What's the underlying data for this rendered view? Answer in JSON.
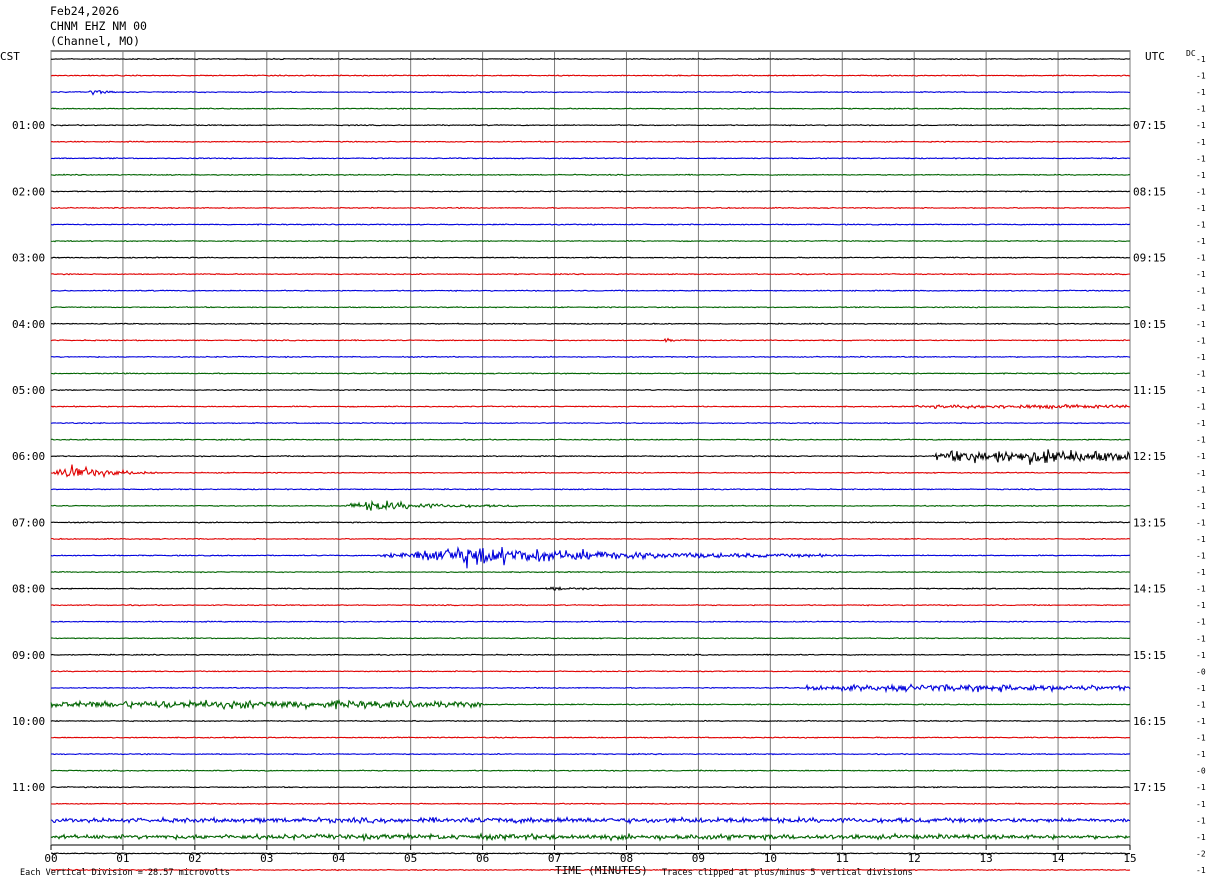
{
  "header": {
    "date": "Feb24,2026",
    "station": "CHNM EHZ NM 00",
    "channel": "(Channel, MO)"
  },
  "chart_data": {
    "type": "line",
    "title": "",
    "left_tz": "CST",
    "right_tz": "UTC",
    "dc_label": "DC",
    "xlabel": "TIME (MINUTES)",
    "x_ticks": [
      "00",
      "01",
      "02",
      "03",
      "04",
      "05",
      "06",
      "07",
      "08",
      "09",
      "10",
      "11",
      "12",
      "13",
      "14",
      "15"
    ],
    "xlim": [
      0,
      15
    ],
    "left_hour_labels": [
      "01:00",
      "02:00",
      "03:00",
      "04:00",
      "05:00",
      "06:00",
      "07:00",
      "08:00",
      "09:00",
      "10:00",
      "11:00"
    ],
    "right_hour_labels": [
      "07:15",
      "08:15",
      "09:15",
      "10:15",
      "11:15",
      "12:15",
      "13:15",
      "14:15",
      "15:15",
      "16:15",
      "17:15"
    ],
    "dc_offsets": [
      "-1",
      "-1",
      "-1",
      "-1",
      "-1",
      "-1",
      "-1",
      "-1",
      "-1",
      "-1",
      "-1",
      "-1",
      "-1",
      "-1",
      "-1",
      "-1",
      "-1",
      "-1",
      "-1",
      "-1",
      "-1",
      "-1",
      "-1",
      "-1",
      "-1",
      "-1",
      "-1",
      "-1",
      "-1",
      "-1",
      "-1",
      "-1",
      "-1",
      "-1",
      "-1",
      "-1",
      "-1",
      "-0",
      "-1",
      "-1",
      "-1",
      "-1",
      "-1",
      "-0",
      "-1",
      "-1",
      "-1",
      "-1",
      "-2",
      "-1"
    ],
    "trace_colors": [
      "#000000",
      "#e00000",
      "#0000dd",
      "#006400"
    ],
    "footer_left": "Each Vertical Division =   28.57 microvolts",
    "footer_right": "Traces clipped at plus/minus 5 vertical divisions",
    "events": [
      {
        "trace": 2,
        "start_min": 0.5,
        "end_min": 1.0,
        "amplitude": 3
      },
      {
        "trace": 17,
        "start_min": 8.5,
        "end_min": 8.9,
        "amplitude": 3
      },
      {
        "trace": 21,
        "start_min": 12.0,
        "end_min": 15.0,
        "amplitude": 2
      },
      {
        "trace": 24,
        "start_min": 12.3,
        "end_min": 15.0,
        "amplitude": 9
      },
      {
        "trace": 25,
        "start_min": 0.0,
        "end_min": 1.5,
        "amplitude": 10
      },
      {
        "trace": 27,
        "start_min": 4.0,
        "end_min": 6.5,
        "amplitude": 7
      },
      {
        "trace": 30,
        "start_min": 4.5,
        "end_min": 11.0,
        "amplitude": 14
      },
      {
        "trace": 32,
        "start_min": 6.8,
        "end_min": 8.0,
        "amplitude": 2
      },
      {
        "trace": 38,
        "start_min": 10.5,
        "end_min": 15.0,
        "amplitude": 4
      },
      {
        "trace": 39,
        "start_min": 0.0,
        "end_min": 6.0,
        "amplitude": 5
      },
      {
        "trace": 46,
        "start_min": 0.0,
        "end_min": 15.0,
        "amplitude": 3
      },
      {
        "trace": 47,
        "start_min": 0.0,
        "end_min": 15.0,
        "amplitude": 3
      }
    ]
  }
}
